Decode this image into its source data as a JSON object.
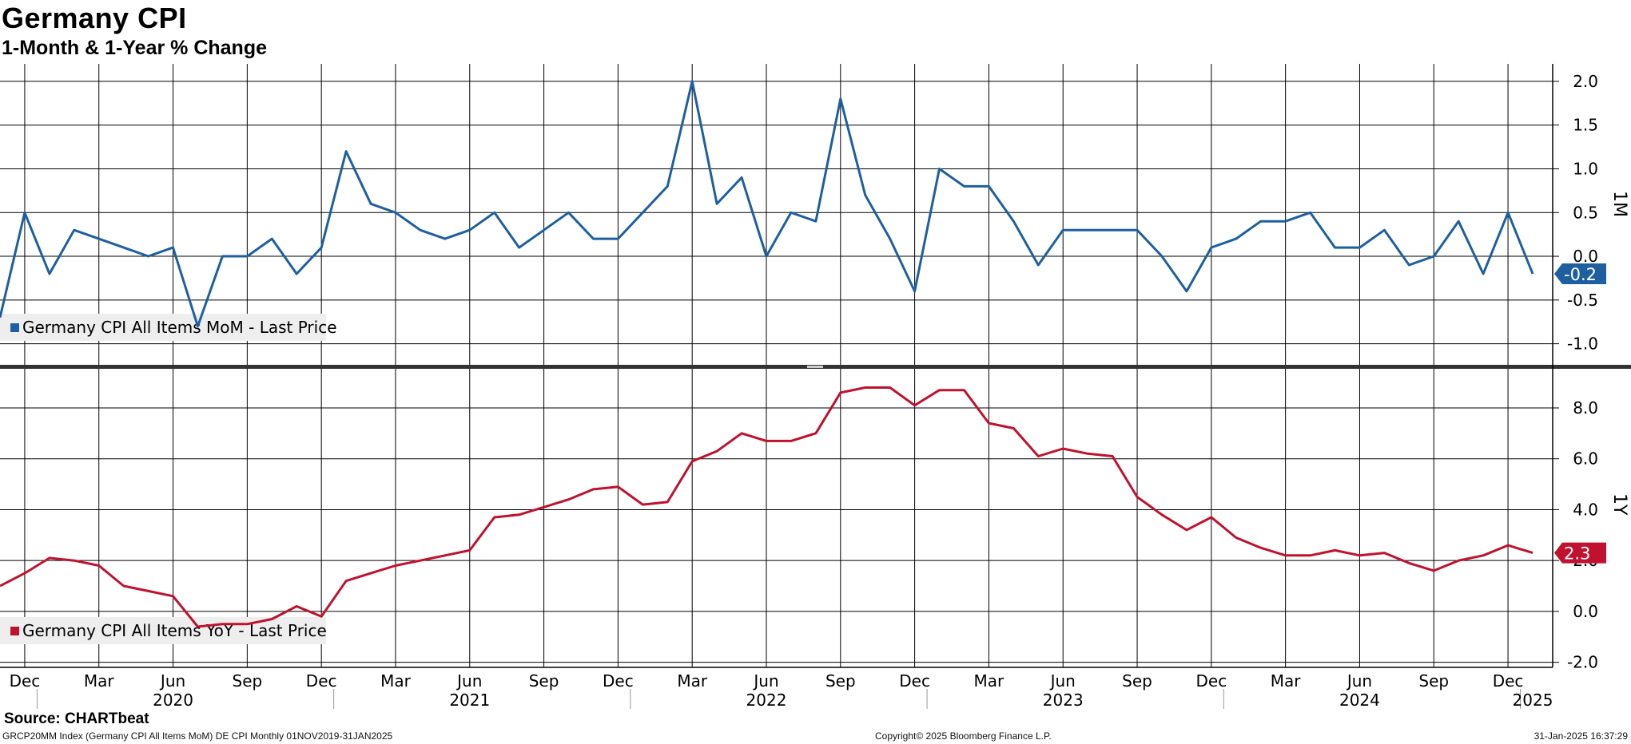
{
  "title": "Germany CPI",
  "subtitle": "1-Month & 1-Year % Change",
  "source": "Source: CHARTbeat",
  "footer": {
    "left": "GRCP20MM Index (Germany CPI All Items MoM) DE CPI  Monthly 01NOV2019-31JAN2025",
    "center": "Copyright© 2025 Bloomberg Finance L.P.",
    "right": "31-Jan-2025 16:37:29"
  },
  "colors": {
    "mom": "#1f5fa0",
    "yoy": "#c0122e",
    "grid": "#000000"
  },
  "chart_data": [
    {
      "type": "line",
      "axis_label": "1M",
      "ylim": [
        -1.25,
        2.2
      ],
      "yticks": [
        {
          "v": 2.0,
          "label": "2.0"
        },
        {
          "v": 1.5,
          "label": "1.5"
        },
        {
          "v": 1.0,
          "label": "1.0"
        },
        {
          "v": 0.5,
          "label": "0.5"
        },
        {
          "v": 0.0,
          "label": "0.0"
        },
        {
          "v": -0.5,
          "label": "-0.5"
        },
        {
          "v": -1.0,
          "label": "-1.0"
        }
      ],
      "legend": "Germany CPI All Items MoM - Last Price",
      "last_value": "-0.2",
      "x": [
        "2019-11",
        "2019-12",
        "2020-01",
        "2020-02",
        "2020-03",
        "2020-04",
        "2020-05",
        "2020-06",
        "2020-07",
        "2020-08",
        "2020-09",
        "2020-10",
        "2020-11",
        "2020-12",
        "2021-01",
        "2021-02",
        "2021-03",
        "2021-04",
        "2021-05",
        "2021-06",
        "2021-07",
        "2021-08",
        "2021-09",
        "2021-10",
        "2021-11",
        "2021-12",
        "2022-01",
        "2022-02",
        "2022-03",
        "2022-04",
        "2022-05",
        "2022-06",
        "2022-07",
        "2022-08",
        "2022-09",
        "2022-10",
        "2022-11",
        "2022-12",
        "2023-01",
        "2023-02",
        "2023-03",
        "2023-04",
        "2023-05",
        "2023-06",
        "2023-07",
        "2023-08",
        "2023-09",
        "2023-10",
        "2023-11",
        "2023-12",
        "2024-01",
        "2024-02",
        "2024-03",
        "2024-04",
        "2024-05",
        "2024-06",
        "2024-07",
        "2024-08",
        "2024-09",
        "2024-10",
        "2024-11",
        "2024-12",
        "2025-01"
      ],
      "values": [
        -0.7,
        0.5,
        -0.2,
        0.3,
        0.2,
        0.1,
        0.0,
        0.1,
        -0.8,
        0.0,
        0.0,
        0.2,
        -0.2,
        0.1,
        1.2,
        0.6,
        0.5,
        0.3,
        0.2,
        0.3,
        0.5,
        0.1,
        0.3,
        0.5,
        0.2,
        0.2,
        0.5,
        0.8,
        2.0,
        0.6,
        0.9,
        0.0,
        0.5,
        0.4,
        1.8,
        0.7,
        0.2,
        -0.4,
        1.0,
        0.8,
        0.8,
        0.4,
        -0.1,
        0.3,
        0.3,
        0.3,
        0.3,
        0.0,
        -0.4,
        0.1,
        0.2,
        0.4,
        0.4,
        0.5,
        0.1,
        0.1,
        0.3,
        -0.1,
        0.0,
        0.4,
        -0.2,
        0.5,
        -0.2
      ]
    },
    {
      "type": "line",
      "axis_label": "1Y",
      "ylim": [
        -2.2,
        9.6
      ],
      "yticks": [
        {
          "v": 8.0,
          "label": "8.0"
        },
        {
          "v": 6.0,
          "label": "6.0"
        },
        {
          "v": 4.0,
          "label": "4.0"
        },
        {
          "v": 2.0,
          "label": "2.0"
        },
        {
          "v": 0.0,
          "label": "0.0"
        },
        {
          "v": -2.0,
          "label": "-2.0"
        }
      ],
      "legend": "Germany CPI All Items YoY - Last Price",
      "last_value": "2.3",
      "x": [
        "2019-11",
        "2019-12",
        "2020-01",
        "2020-02",
        "2020-03",
        "2020-04",
        "2020-05",
        "2020-06",
        "2020-07",
        "2020-08",
        "2020-09",
        "2020-10",
        "2020-11",
        "2020-12",
        "2021-01",
        "2021-02",
        "2021-03",
        "2021-04",
        "2021-05",
        "2021-06",
        "2021-07",
        "2021-08",
        "2021-09",
        "2021-10",
        "2021-11",
        "2021-12",
        "2022-01",
        "2022-02",
        "2022-03",
        "2022-04",
        "2022-05",
        "2022-06",
        "2022-07",
        "2022-08",
        "2022-09",
        "2022-10",
        "2022-11",
        "2022-12",
        "2023-01",
        "2023-02",
        "2023-03",
        "2023-04",
        "2023-05",
        "2023-06",
        "2023-07",
        "2023-08",
        "2023-09",
        "2023-10",
        "2023-11",
        "2023-12",
        "2024-01",
        "2024-02",
        "2024-03",
        "2024-04",
        "2024-05",
        "2024-06",
        "2024-07",
        "2024-08",
        "2024-09",
        "2024-10",
        "2024-11",
        "2024-12",
        "2025-01"
      ],
      "values": [
        1.0,
        1.5,
        2.1,
        2.0,
        1.8,
        1.0,
        0.8,
        0.6,
        -0.6,
        -0.5,
        -0.5,
        -0.3,
        0.2,
        -0.2,
        1.2,
        1.5,
        1.8,
        2.0,
        2.2,
        2.4,
        3.7,
        3.8,
        4.1,
        4.4,
        4.8,
        4.9,
        4.2,
        4.3,
        5.9,
        6.3,
        7.0,
        6.7,
        6.7,
        7.0,
        8.6,
        8.8,
        8.8,
        8.1,
        8.7,
        8.7,
        7.4,
        7.2,
        6.1,
        6.4,
        6.2,
        6.1,
        4.5,
        3.8,
        3.2,
        3.7,
        2.9,
        2.5,
        2.2,
        2.2,
        2.4,
        2.2,
        2.3,
        1.9,
        1.6,
        2.0,
        2.2,
        2.6,
        2.3
      ]
    }
  ],
  "x_axis": {
    "months": [
      {
        "i": 1,
        "label": "Dec"
      },
      {
        "i": 4,
        "label": "Mar"
      },
      {
        "i": 7,
        "label": "Jun"
      },
      {
        "i": 10,
        "label": "Sep"
      },
      {
        "i": 13,
        "label": "Dec"
      },
      {
        "i": 16,
        "label": "Mar"
      },
      {
        "i": 19,
        "label": "Jun"
      },
      {
        "i": 22,
        "label": "Sep"
      },
      {
        "i": 25,
        "label": "Dec"
      },
      {
        "i": 28,
        "label": "Mar"
      },
      {
        "i": 31,
        "label": "Jun"
      },
      {
        "i": 34,
        "label": "Sep"
      },
      {
        "i": 37,
        "label": "Dec"
      },
      {
        "i": 40,
        "label": "Mar"
      },
      {
        "i": 43,
        "label": "Jun"
      },
      {
        "i": 46,
        "label": "Sep"
      },
      {
        "i": 49,
        "label": "Dec"
      },
      {
        "i": 52,
        "label": "Mar"
      },
      {
        "i": 55,
        "label": "Jun"
      },
      {
        "i": 58,
        "label": "Sep"
      },
      {
        "i": 61,
        "label": "Dec"
      }
    ],
    "years": [
      {
        "i": 7,
        "label": "2020"
      },
      {
        "i": 19,
        "label": "2021"
      },
      {
        "i": 31,
        "label": "2022"
      },
      {
        "i": 43,
        "label": "2023"
      },
      {
        "i": 55,
        "label": "2024"
      },
      {
        "i": 62,
        "label": "2025"
      }
    ],
    "year_boundaries": [
      1.5,
      13.5,
      25.5,
      37.5,
      49.5,
      61.5
    ]
  }
}
